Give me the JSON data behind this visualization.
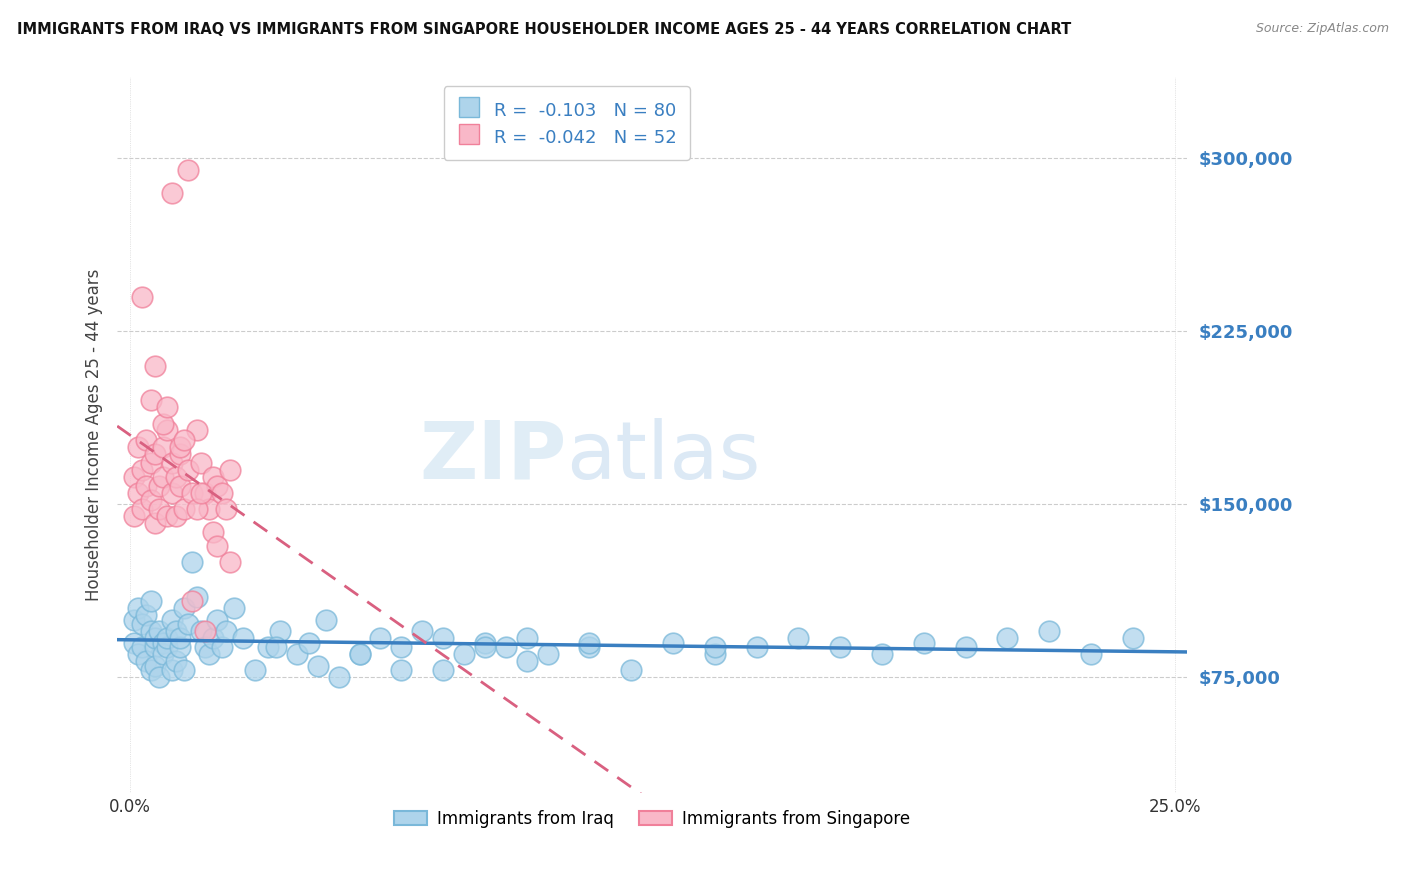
{
  "title": "IMMIGRANTS FROM IRAQ VS IMMIGRANTS FROM SINGAPORE HOUSEHOLDER INCOME AGES 25 - 44 YEARS CORRELATION CHART",
  "source": "Source: ZipAtlas.com",
  "ylabel": "Householder Income Ages 25 - 44 years",
  "xlim": [
    -0.003,
    0.253
  ],
  "ylim": [
    25000,
    335000
  ],
  "yticks": [
    75000,
    150000,
    225000,
    300000
  ],
  "ytick_labels": [
    "$75,000",
    "$150,000",
    "$225,000",
    "$300,000"
  ],
  "xticks": [
    0.0,
    0.25
  ],
  "xtick_labels": [
    "0.0%",
    "25.0%"
  ],
  "legend_iraq_r": "-0.103",
  "legend_iraq_n": "80",
  "legend_sing_r": "-0.042",
  "legend_sing_n": "52",
  "legend_iraq_label": "Immigrants from Iraq",
  "legend_sing_label": "Immigrants from Singapore",
  "iraq_color": "#7ab8d9",
  "iraq_color_fill": "#aed4eb",
  "sing_color": "#f0809a",
  "sing_color_fill": "#f9b8c8",
  "line_iraq_color": "#3a7fc1",
  "line_sing_color": "#d96080",
  "watermark_zip": "ZIP",
  "watermark_atlas": "atlas",
  "iraq_x": [
    0.001,
    0.001,
    0.002,
    0.002,
    0.003,
    0.003,
    0.004,
    0.004,
    0.005,
    0.005,
    0.005,
    0.006,
    0.006,
    0.006,
    0.007,
    0.007,
    0.008,
    0.008,
    0.009,
    0.009,
    0.01,
    0.01,
    0.011,
    0.011,
    0.012,
    0.012,
    0.013,
    0.013,
    0.014,
    0.015,
    0.016,
    0.017,
    0.018,
    0.019,
    0.02,
    0.021,
    0.022,
    0.023,
    0.025,
    0.027,
    0.03,
    0.033,
    0.036,
    0.04,
    0.043,
    0.047,
    0.05,
    0.055,
    0.06,
    0.065,
    0.07,
    0.075,
    0.08,
    0.085,
    0.09,
    0.095,
    0.1,
    0.11,
    0.12,
    0.13,
    0.14,
    0.15,
    0.16,
    0.17,
    0.18,
    0.19,
    0.2,
    0.21,
    0.22,
    0.23,
    0.035,
    0.045,
    0.055,
    0.065,
    0.075,
    0.085,
    0.095,
    0.11,
    0.14,
    0.24
  ],
  "iraq_y": [
    100000,
    90000,
    105000,
    85000,
    98000,
    88000,
    102000,
    82000,
    95000,
    78000,
    108000,
    88000,
    92000,
    80000,
    95000,
    75000,
    90000,
    85000,
    88000,
    92000,
    100000,
    78000,
    95000,
    82000,
    88000,
    92000,
    105000,
    78000,
    98000,
    125000,
    110000,
    95000,
    88000,
    85000,
    92000,
    100000,
    88000,
    95000,
    105000,
    92000,
    78000,
    88000,
    95000,
    85000,
    90000,
    100000,
    75000,
    85000,
    92000,
    88000,
    95000,
    78000,
    85000,
    90000,
    88000,
    92000,
    85000,
    88000,
    78000,
    90000,
    85000,
    88000,
    92000,
    88000,
    85000,
    90000,
    88000,
    92000,
    95000,
    85000,
    88000,
    80000,
    85000,
    78000,
    92000,
    88000,
    82000,
    90000,
    88000,
    92000
  ],
  "sing_x": [
    0.001,
    0.001,
    0.002,
    0.002,
    0.003,
    0.003,
    0.004,
    0.004,
    0.005,
    0.005,
    0.006,
    0.006,
    0.007,
    0.007,
    0.008,
    0.008,
    0.009,
    0.009,
    0.01,
    0.01,
    0.011,
    0.011,
    0.012,
    0.012,
    0.013,
    0.014,
    0.015,
    0.016,
    0.017,
    0.018,
    0.019,
    0.02,
    0.021,
    0.022,
    0.023,
    0.024,
    0.005,
    0.008,
    0.012,
    0.016,
    0.02,
    0.024,
    0.003,
    0.006,
    0.009,
    0.013,
    0.017,
    0.021,
    0.015,
    0.018,
    0.01,
    0.014
  ],
  "sing_y": [
    145000,
    162000,
    155000,
    175000,
    165000,
    148000,
    178000,
    158000,
    168000,
    152000,
    142000,
    172000,
    158000,
    148000,
    175000,
    162000,
    182000,
    145000,
    168000,
    155000,
    145000,
    162000,
    158000,
    172000,
    148000,
    165000,
    155000,
    182000,
    168000,
    155000,
    148000,
    162000,
    158000,
    155000,
    148000,
    165000,
    195000,
    185000,
    175000,
    148000,
    138000,
    125000,
    240000,
    210000,
    192000,
    178000,
    155000,
    132000,
    108000,
    95000,
    285000,
    295000
  ]
}
